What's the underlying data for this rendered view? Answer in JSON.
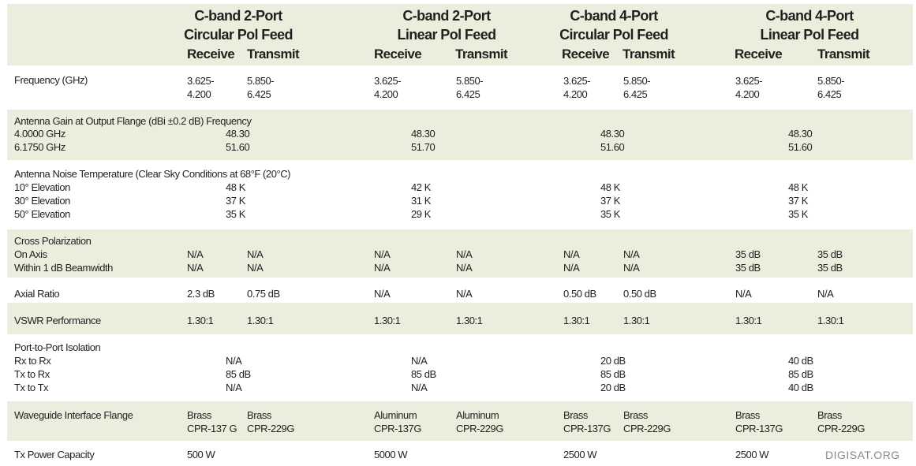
{
  "columns": [
    {
      "title1": "C-band 2-Port",
      "title2": "Circular Pol Feed",
      "rx": "Receive",
      "tx": "Transmit"
    },
    {
      "title1": "C-band 2-Port",
      "title2": "Linear Pol Feed",
      "rx": "Receive",
      "tx": "Transmit"
    },
    {
      "title1": "C-band 4-Port",
      "title2": "Circular Pol Feed",
      "rx": "Receive",
      "tx": "Transmit"
    },
    {
      "title1": "C-band 4-Port",
      "title2": "Linear Pol Feed",
      "rx": "Receive",
      "tx": "Transmit"
    }
  ],
  "frequency": {
    "label": "Frequency (GHz)",
    "rx": "3.625-\n4.200",
    "tx": "5.850-\n6.425"
  },
  "gain": {
    "label": "Antenna Gain at Output Flange (dBi ±0.2 dB) Frequency",
    "sub": "4.0000 GHz\n6.1750 GHz",
    "values": [
      "48.30\n51.60",
      "48.30\n51.70",
      "48.30\n51.60",
      "48.30\n51.60"
    ]
  },
  "noise": {
    "label": "Antenna Noise Temperature (Clear Sky Conditions at 68°F (20°C)",
    "sub": "10° Elevation\n30° Elevation\n50° Elevation",
    "values": [
      "48 K\n37 K\n35 K",
      "42 K\n31 K\n29 K",
      "48 K\n37 K\n35 K",
      "48 K\n37 K\n35 K"
    ]
  },
  "cross": {
    "label": "Cross Polarization\nOn Axis\nWithin 1 dB Beamwidth",
    "values": [
      "N/A\nN/A",
      "N/A\nN/A",
      "N/A\nN/A",
      "N/A\nN/A",
      "N/A\nN/A",
      "N/A\nN/A",
      "35 dB\n35 dB",
      "35 dB\n35 dB"
    ]
  },
  "axial": {
    "label": "Axial Ratio",
    "values": [
      "2.3 dB",
      "0.75 dB",
      "N/A",
      "N/A",
      "0.50 dB",
      "0.50 dB",
      "N/A",
      "N/A"
    ]
  },
  "vswr": {
    "label": "VSWR Performance",
    "values": [
      "1.30:1",
      "1.30:1",
      "1.30:1",
      "1.30:1",
      "1.30:1",
      "1.30:1",
      "1.30:1",
      "1.30:1"
    ]
  },
  "isolation": {
    "label": "Port-to-Port Isolation\nRx to Rx\nTx to Rx\nTx to Tx",
    "values": [
      "N/A\n85 dB\nN/A",
      "N/A\n85 dB\nN/A",
      "20 dB\n85 dB\n20 dB",
      "40 dB\n85 dB\n40 dB"
    ]
  },
  "flange": {
    "label": "Waveguide Interface Flange",
    "values": [
      "Brass\nCPR-137 G",
      "Brass\nCPR-229G",
      "Aluminum\nCPR-137G",
      "Aluminum\nCPR-229G",
      "Brass\nCPR-137G",
      "Brass\nCPR-229G",
      "Brass\nCPR-137G",
      "Brass\nCPR-229G"
    ]
  },
  "power": {
    "label": "Tx Power Capacity",
    "values": [
      "500 W",
      "5000 W",
      "2500 W",
      "2500 W"
    ]
  },
  "watermark": "DIGISAT.ORG"
}
